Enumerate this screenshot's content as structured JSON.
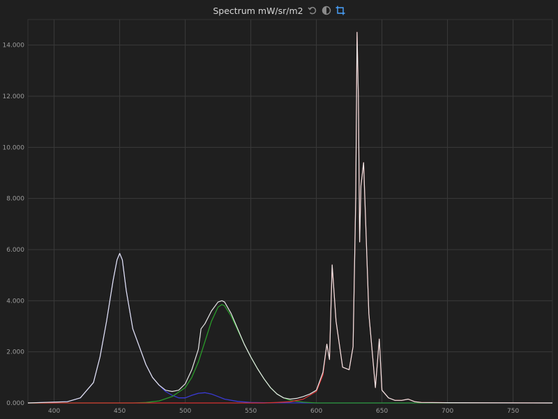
{
  "header": {
    "title": "Spectrum mW/sr/m2",
    "icons": [
      "undo-icon",
      "contrast-icon",
      "crop-icon"
    ]
  },
  "colors": {
    "background": "#1f1f1f",
    "grid": "#3a3a3a",
    "white": "#e8e8e8",
    "blue": "#3a3ad6",
    "green": "#2a9a2a",
    "red": "#d63232",
    "accent": "#4aa3ff"
  },
  "chart_data": {
    "type": "line",
    "title": "Spectrum mW/sr/m2",
    "xlabel": "",
    "ylabel": "",
    "xlim": [
      380,
      780
    ],
    "ylim": [
      0,
      15
    ],
    "grid": true,
    "x_ticks": [
      400,
      450,
      500,
      550,
      600,
      650,
      700,
      750
    ],
    "x_tick_labels": [
      "400",
      "450",
      "500",
      "550",
      "600",
      "650",
      "700",
      "750"
    ],
    "y_ticks": [
      0,
      2,
      4,
      6,
      8,
      10,
      12,
      14
    ],
    "y_tick_labels": [
      "0.000",
      "2.000",
      "4.000",
      "6.000",
      "8.000",
      "10.000",
      "12.000",
      "14.000"
    ],
    "series": [
      {
        "color": "white",
        "x": [
          380,
          410,
          420,
          430,
          435,
          440,
          445,
          448,
          450,
          452,
          455,
          460,
          465,
          470,
          475,
          480,
          485,
          490,
          495,
          500,
          505,
          510,
          512,
          515,
          520,
          525,
          528,
          530,
          535,
          540,
          545,
          550,
          555,
          560,
          565,
          570,
          575,
          580,
          585,
          590,
          595,
          600,
          605,
          608,
          610,
          612,
          615,
          620,
          625,
          628,
          630,
          631,
          632,
          633,
          634,
          636,
          640,
          645,
          648,
          650,
          655,
          660,
          665,
          670,
          675,
          680,
          700,
          780
        ],
        "y": [
          0,
          0.05,
          0.2,
          0.8,
          1.8,
          3.2,
          4.8,
          5.6,
          5.85,
          5.6,
          4.4,
          2.9,
          2.2,
          1.5,
          1.0,
          0.7,
          0.5,
          0.45,
          0.5,
          0.75,
          1.3,
          2.1,
          2.9,
          3.1,
          3.6,
          3.95,
          4.0,
          3.95,
          3.5,
          2.9,
          2.3,
          1.8,
          1.35,
          0.95,
          0.6,
          0.35,
          0.2,
          0.15,
          0.18,
          0.25,
          0.35,
          0.5,
          1.2,
          2.3,
          1.7,
          5.4,
          3.2,
          1.4,
          1.3,
          2.2,
          8.0,
          14.5,
          12.0,
          6.3,
          8.5,
          9.4,
          3.5,
          0.6,
          2.5,
          0.5,
          0.2,
          0.1,
          0.1,
          0.15,
          0.05,
          0.02,
          0.01,
          0
        ]
      },
      {
        "color": "blue",
        "x": [
          380,
          410,
          420,
          430,
          435,
          440,
          445,
          448,
          450,
          452,
          455,
          460,
          465,
          470,
          475,
          480,
          485,
          490,
          495,
          500,
          505,
          510,
          515,
          520,
          525,
          530,
          540,
          550,
          560,
          600,
          780
        ],
        "y": [
          0,
          0.05,
          0.2,
          0.8,
          1.8,
          3.2,
          4.8,
          5.6,
          5.85,
          5.6,
          4.4,
          2.9,
          2.2,
          1.5,
          1.0,
          0.7,
          0.45,
          0.3,
          0.2,
          0.2,
          0.3,
          0.38,
          0.4,
          0.35,
          0.25,
          0.15,
          0.06,
          0.02,
          0.01,
          0,
          0
        ]
      },
      {
        "color": "green",
        "x": [
          380,
          460,
          470,
          480,
          490,
          500,
          505,
          510,
          515,
          520,
          525,
          528,
          530,
          535,
          540,
          545,
          550,
          555,
          560,
          565,
          570,
          575,
          580,
          590,
          600,
          780
        ],
        "y": [
          0,
          0,
          0.02,
          0.08,
          0.25,
          0.6,
          1.0,
          1.6,
          2.4,
          3.2,
          3.75,
          3.85,
          3.8,
          3.4,
          2.85,
          2.3,
          1.8,
          1.35,
          0.95,
          0.6,
          0.35,
          0.2,
          0.1,
          0.03,
          0,
          0
        ]
      },
      {
        "color": "red",
        "x": [
          380,
          560,
          570,
          580,
          590,
          595,
          600,
          605,
          608,
          610,
          612,
          615,
          620,
          625,
          628,
          630,
          631,
          632,
          633,
          634,
          636,
          640,
          645,
          648,
          650,
          655,
          660,
          665,
          670,
          675,
          680,
          700,
          780
        ],
        "y": [
          0,
          0,
          0.02,
          0.05,
          0.15,
          0.3,
          0.45,
          1.1,
          2.3,
          1.7,
          5.4,
          3.2,
          1.4,
          1.3,
          2.2,
          8.0,
          14.5,
          12.0,
          6.3,
          8.5,
          9.4,
          3.5,
          0.6,
          2.5,
          0.5,
          0.2,
          0.1,
          0.1,
          0.15,
          0.05,
          0.02,
          0.01,
          0
        ]
      }
    ]
  }
}
